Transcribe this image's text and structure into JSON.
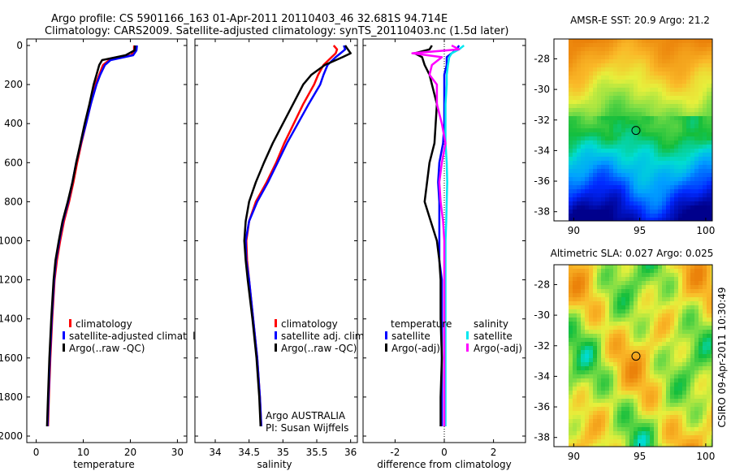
{
  "header": {
    "title_line1": "Argo profile: CS 5901166_163 01-Apr-2011 20110403_46 32.681S 94.714E",
    "title_line2": "Climatology: CARS2009. Satellite-adjusted climatology: synTS_20110403.nc (1.5d later)"
  },
  "credits": {
    "argo": "Argo AUSTRALIA",
    "pi": "PI: Susan Wijffels"
  },
  "stamp": "CSIRO 09-Apr-2011 10:30:49",
  "colors": {
    "climatology": "#ff0000",
    "satellite": "#0000ff",
    "argo": "#000000",
    "sal_satellite": "#00e8f0",
    "sal_argo": "#ff00ff"
  },
  "chart_data": [
    {
      "id": "temperature",
      "type": "line",
      "xlabel": "temperature",
      "ylabel": "",
      "xlim": [
        -2,
        32
      ],
      "ylim": [
        2050,
        0
      ],
      "xticks": [
        0,
        10,
        20,
        30
      ],
      "yticks": [
        0,
        200,
        400,
        600,
        800,
        1000,
        1200,
        1400,
        1600,
        1800,
        2000
      ],
      "depth": [
        0,
        25,
        50,
        75,
        100,
        150,
        200,
        300,
        400,
        500,
        600,
        700,
        800,
        900,
        1000,
        1100,
        1200,
        1400,
        1600,
        1800,
        1950
      ],
      "series": [
        {
          "name": "climatology",
          "color": "#ff0000",
          "values": [
            20.8,
            20.8,
            20.2,
            15.5,
            14.2,
            13.4,
            12.6,
            11.6,
            10.6,
            9.6,
            8.7,
            7.9,
            7.0,
            5.9,
            5.1,
            4.4,
            3.9,
            3.4,
            3.0,
            2.7,
            2.5
          ]
        },
        {
          "name": "satellite-adjusted climatology",
          "color": "#0000ff",
          "values": [
            21.4,
            21.3,
            20.6,
            15.8,
            14.6,
            13.6,
            12.8,
            11.6,
            10.6,
            9.5,
            8.5,
            7.7,
            6.8,
            5.7,
            4.9,
            4.2,
            3.8,
            3.3,
            2.9,
            2.6,
            2.4
          ]
        },
        {
          "name": "Argo(..raw -QC)",
          "color": "#000000",
          "values": [
            21.0,
            20.9,
            19.0,
            14.0,
            13.4,
            12.8,
            12.2,
            11.3,
            10.3,
            9.4,
            8.5,
            7.7,
            6.7,
            5.6,
            4.8,
            4.1,
            3.7,
            3.2,
            2.8,
            2.5,
            2.3
          ]
        }
      ],
      "legend": [
        {
          "label": "climatology",
          "color": "#ff0000"
        },
        {
          "label": "satellite-adjusted climatology",
          "color": "#0000ff"
        },
        {
          "label": "Argo(..raw -QC)",
          "color": "#000000"
        }
      ]
    },
    {
      "id": "salinity",
      "type": "line",
      "xlabel": "salinity",
      "xlim": [
        33.7,
        36.1
      ],
      "ylim": [
        2050,
        0
      ],
      "xticks": [
        34,
        34.5,
        35,
        35.5,
        36
      ],
      "depth": [
        0,
        20,
        40,
        60,
        100,
        150,
        200,
        300,
        400,
        500,
        600,
        700,
        800,
        900,
        1000,
        1100,
        1200,
        1400,
        1600,
        1800,
        1950
      ],
      "series": [
        {
          "name": "climatology",
          "color": "#ff0000",
          "values": [
            35.75,
            35.8,
            35.78,
            35.72,
            35.6,
            35.52,
            35.46,
            35.3,
            35.16,
            35.02,
            34.9,
            34.76,
            34.6,
            34.5,
            34.46,
            34.47,
            34.5,
            34.56,
            34.62,
            34.66,
            34.68
          ]
        },
        {
          "name": "satellite adj. clim.",
          "color": "#0000ff",
          "values": [
            35.9,
            35.92,
            35.85,
            35.78,
            35.66,
            35.6,
            35.55,
            35.38,
            35.22,
            35.06,
            34.92,
            34.78,
            34.62,
            34.5,
            34.45,
            34.46,
            34.5,
            34.56,
            34.62,
            34.66,
            34.68
          ]
        },
        {
          "name": "Argo(..raw -QC)",
          "color": "#000000",
          "values": [
            35.92,
            35.96,
            36.0,
            35.88,
            35.62,
            35.42,
            35.3,
            35.15,
            35.0,
            34.85,
            34.72,
            34.6,
            34.5,
            34.45,
            34.43,
            34.45,
            34.48,
            34.55,
            34.61,
            34.65,
            34.67
          ]
        }
      ],
      "legend": [
        {
          "label": "climatology",
          "color": "#ff0000"
        },
        {
          "label": "satellite adj. clim.",
          "color": "#0000ff"
        },
        {
          "label": "Argo(..raw -QC)",
          "color": "#000000"
        }
      ]
    },
    {
      "id": "difference",
      "type": "line",
      "xlabel": "difference from climatology",
      "xlim": [
        -3.3,
        3.3
      ],
      "ylim": [
        2050,
        0
      ],
      "xticks": [
        -2,
        0,
        2
      ],
      "depth": [
        0,
        20,
        40,
        60,
        100,
        150,
        200,
        300,
        400,
        500,
        600,
        700,
        800,
        900,
        1000,
        1100,
        1200,
        1400,
        1600,
        1800,
        1950
      ],
      "series": [
        {
          "name": "temperature satellite",
          "color": "#0000ff",
          "values": [
            0.6,
            0.5,
            0.3,
            0.1,
            0.1,
            0.0,
            0.0,
            0.0,
            0.0,
            -0.05,
            -0.2,
            -0.25,
            -0.2,
            -0.2,
            -0.2,
            -0.2,
            -0.1,
            -0.1,
            -0.1,
            -0.1,
            -0.1
          ]
        },
        {
          "name": "temperature Argo(-adj)",
          "color": "#000000",
          "values": [
            -0.5,
            -0.6,
            -1.2,
            -0.9,
            -0.8,
            -0.6,
            -0.5,
            -0.3,
            -0.35,
            -0.4,
            -0.6,
            -0.7,
            -0.8,
            -0.55,
            -0.3,
            -0.2,
            -0.15,
            -0.15,
            -0.1,
            -0.15,
            -0.15
          ]
        },
        {
          "name": "salinity satellite",
          "color": "#00e8f0",
          "values": [
            0.8,
            0.6,
            0.3,
            0.2,
            0.15,
            0.1,
            0.1,
            0.05,
            0.05,
            0.05,
            0.1,
            0.12,
            0.1,
            0.08,
            0.05,
            0.05,
            0.05,
            0.05,
            0.05,
            0.05,
            0.05
          ]
        },
        {
          "name": "salinity Argo(-adj)",
          "color": "#ff00ff",
          "values": [
            0.3,
            0.6,
            -1.3,
            -0.1,
            -0.5,
            -0.6,
            -0.3,
            -0.3,
            -0.1,
            0.05,
            -0.1,
            -0.2,
            -0.15,
            -0.05,
            0.0,
            0.0,
            0.0,
            0.0,
            0.0,
            0.0,
            0.0
          ]
        }
      ],
      "legend": [
        {
          "label": "temperature",
          "color": ""
        },
        {
          "label": "satellite",
          "color": "#0000ff"
        },
        {
          "label": "Argo(-adj)",
          "color": "#000000"
        },
        {
          "label": "salinity",
          "color": ""
        },
        {
          "label": "satellite",
          "color": "#00e8f0"
        },
        {
          "label": "Argo(-adj)",
          "color": "#ff00ff"
        }
      ]
    },
    {
      "id": "sst_map",
      "type": "heatmap",
      "title": "AMSR-E SST: 20.9 Argo: 21.2",
      "sst": 20.9,
      "argo_value": 21.2,
      "xlim": [
        88.5,
        100.5
      ],
      "ylim": [
        -38.6,
        -26.7
      ],
      "xticks": [
        90,
        95,
        100
      ],
      "yticks": [
        -28,
        -30,
        -32,
        -34,
        -36,
        -38
      ],
      "marker": {
        "lon": 94.714,
        "lat": -32.681
      }
    },
    {
      "id": "sla_map",
      "type": "heatmap",
      "title": "Altimetric SLA: 0.027 Argo: 0.025",
      "sla": 0.027,
      "argo_value": 0.025,
      "xlim": [
        88.5,
        100.5
      ],
      "ylim": [
        -38.6,
        -26.7
      ],
      "xticks": [
        90,
        95,
        100
      ],
      "yticks": [
        -28,
        -30,
        -32,
        -34,
        -36,
        -38
      ],
      "marker": {
        "lon": 94.714,
        "lat": -32.681
      }
    }
  ]
}
